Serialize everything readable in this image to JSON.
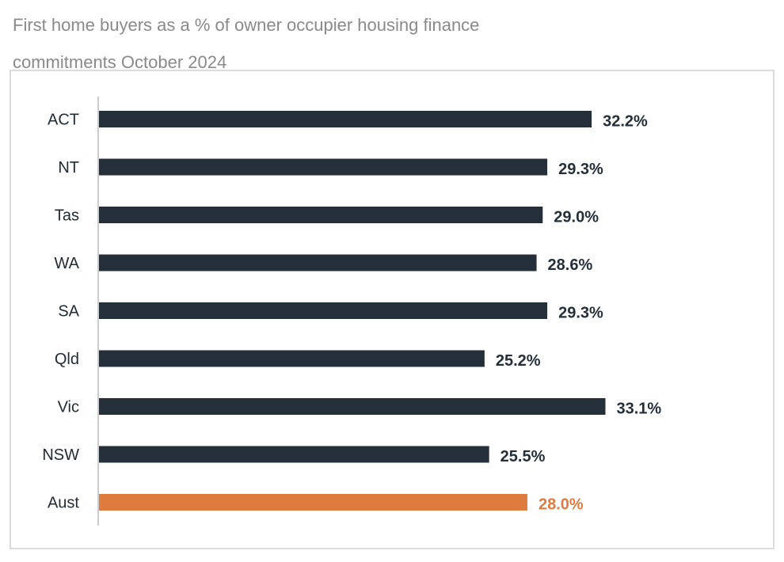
{
  "title": "First home buyers as a % of owner occupier housing finance commitments October 2024",
  "chart_data": {
    "type": "bar",
    "orientation": "horizontal",
    "title": "First home buyers as a % of owner occupier housing finance commitments October 2024",
    "categories": [
      "ACT",
      "NT",
      "Tas",
      "WA",
      "SA",
      "Qld",
      "Vic",
      "NSW",
      "Aust"
    ],
    "values": [
      32.2,
      29.3,
      29.0,
      28.6,
      29.3,
      25.2,
      33.1,
      25.5,
      28.0
    ],
    "value_labels": [
      "32.2%",
      "29.3%",
      "29.0%",
      "28.6%",
      "29.3%",
      "25.2%",
      "33.1%",
      "25.5%",
      "28.0%"
    ],
    "xlim": [
      0,
      40
    ],
    "grid": false,
    "legend": "none",
    "colors": {
      "default_bar": "#242f3a",
      "highlight_bar": "#e07b3f",
      "highlight_category": "Aust",
      "axis": "#cccccc"
    }
  }
}
